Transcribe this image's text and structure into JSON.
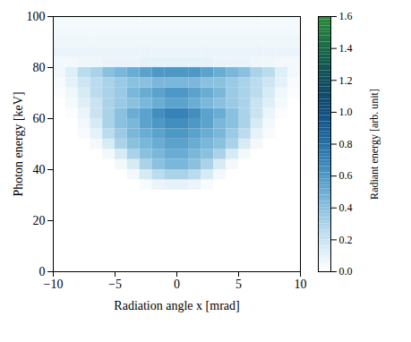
{
  "chart_data": {
    "type": "heatmap",
    "xlabel": "Radiation angle x [mrad]",
    "ylabel": "Photon energy [keV]",
    "xlim": [
      -10,
      10
    ],
    "xticks": [
      -10,
      -5,
      0,
      5,
      10
    ],
    "ylim": [
      0,
      100
    ],
    "yticks": [
      0,
      20,
      40,
      60,
      80,
      100
    ],
    "x_bins": [
      -10,
      -9,
      -8,
      -7,
      -6,
      -5,
      -4,
      -3,
      -2,
      -1,
      0,
      1,
      2,
      3,
      4,
      5,
      6,
      7,
      8,
      9,
      10
    ],
    "y_bins": [
      0,
      4,
      8,
      12,
      16,
      20,
      24,
      28,
      32,
      36,
      40,
      44,
      48,
      52,
      56,
      60,
      64,
      68,
      72,
      76,
      80,
      84,
      88,
      92,
      96,
      100
    ],
    "values": [
      [
        0,
        0,
        0,
        0,
        0,
        0,
        0,
        0,
        0,
        0,
        0,
        0,
        0,
        0,
        0,
        0,
        0,
        0,
        0,
        0
      ],
      [
        0,
        0,
        0,
        0,
        0,
        0,
        0,
        0,
        0,
        0,
        0,
        0,
        0,
        0,
        0,
        0,
        0,
        0,
        0,
        0
      ],
      [
        0,
        0,
        0,
        0,
        0,
        0,
        0,
        0,
        0,
        0,
        0,
        0,
        0,
        0,
        0,
        0,
        0,
        0,
        0,
        0
      ],
      [
        0,
        0,
        0,
        0,
        0,
        0,
        0,
        0,
        0,
        0,
        0,
        0,
        0,
        0,
        0,
        0,
        0,
        0,
        0,
        0
      ],
      [
        0,
        0,
        0,
        0,
        0,
        0,
        0,
        0,
        0,
        0,
        0,
        0,
        0,
        0,
        0,
        0,
        0,
        0,
        0,
        0
      ],
      [
        0,
        0,
        0,
        0,
        0,
        0,
        0,
        0,
        0,
        0,
        0,
        0,
        0,
        0,
        0,
        0,
        0,
        0,
        0,
        0
      ],
      [
        0,
        0,
        0,
        0,
        0,
        0,
        0,
        0,
        0,
        0,
        0,
        0,
        0,
        0,
        0,
        0,
        0,
        0,
        0,
        0
      ],
      [
        0,
        0,
        0,
        0,
        0,
        0,
        0,
        0,
        0,
        0,
        0,
        0,
        0,
        0,
        0,
        0,
        0,
        0,
        0,
        0
      ],
      [
        0,
        0,
        0,
        0,
        0,
        0,
        0,
        0.03,
        0.08,
        0.1,
        0.1,
        0.08,
        0.03,
        0,
        0,
        0,
        0,
        0,
        0,
        0
      ],
      [
        0,
        0,
        0,
        0,
        0,
        0,
        0.05,
        0.15,
        0.25,
        0.3,
        0.3,
        0.25,
        0.15,
        0.05,
        0,
        0,
        0,
        0,
        0,
        0
      ],
      [
        0,
        0,
        0,
        0,
        0,
        0.05,
        0.15,
        0.3,
        0.4,
        0.45,
        0.45,
        0.4,
        0.3,
        0.15,
        0.05,
        0,
        0,
        0,
        0,
        0
      ],
      [
        0,
        0,
        0,
        0,
        0.05,
        0.15,
        0.3,
        0.4,
        0.45,
        0.5,
        0.5,
        0.45,
        0.4,
        0.3,
        0.15,
        0.05,
        0,
        0,
        0,
        0
      ],
      [
        0,
        0,
        0,
        0.05,
        0.15,
        0.3,
        0.4,
        0.45,
        0.5,
        0.55,
        0.55,
        0.5,
        0.45,
        0.4,
        0.3,
        0.15,
        0.05,
        0,
        0,
        0
      ],
      [
        0,
        0,
        0.03,
        0.1,
        0.25,
        0.35,
        0.45,
        0.5,
        0.55,
        0.6,
        0.6,
        0.55,
        0.5,
        0.45,
        0.35,
        0.25,
        0.1,
        0.03,
        0,
        0
      ],
      [
        0,
        0,
        0.05,
        0.15,
        0.3,
        0.4,
        0.45,
        0.55,
        0.6,
        0.65,
        0.65,
        0.6,
        0.55,
        0.45,
        0.4,
        0.3,
        0.15,
        0.05,
        0,
        0
      ],
      [
        0,
        0.02,
        0.08,
        0.2,
        0.3,
        0.4,
        0.5,
        0.55,
        0.65,
        0.7,
        0.7,
        0.65,
        0.55,
        0.5,
        0.4,
        0.3,
        0.2,
        0.08,
        0.02,
        0
      ],
      [
        0,
        0.04,
        0.12,
        0.2,
        0.3,
        0.35,
        0.4,
        0.45,
        0.5,
        0.55,
        0.55,
        0.5,
        0.45,
        0.4,
        0.35,
        0.3,
        0.2,
        0.12,
        0.04,
        0
      ],
      [
        0.02,
        0.06,
        0.15,
        0.25,
        0.3,
        0.35,
        0.45,
        0.5,
        0.55,
        0.6,
        0.6,
        0.55,
        0.5,
        0.45,
        0.35,
        0.3,
        0.25,
        0.15,
        0.06,
        0.02
      ],
      [
        0.03,
        0.1,
        0.18,
        0.25,
        0.3,
        0.35,
        0.4,
        0.4,
        0.45,
        0.45,
        0.45,
        0.45,
        0.4,
        0.4,
        0.35,
        0.3,
        0.25,
        0.18,
        0.1,
        0.03
      ],
      [
        0.05,
        0.12,
        0.25,
        0.3,
        0.4,
        0.45,
        0.5,
        0.55,
        0.6,
        0.6,
        0.6,
        0.6,
        0.55,
        0.5,
        0.45,
        0.4,
        0.3,
        0.25,
        0.12,
        0.05
      ],
      [
        0.05,
        0.05,
        0.06,
        0.06,
        0.08,
        0.08,
        0.08,
        0.1,
        0.1,
        0.1,
        0.1,
        0.1,
        0.1,
        0.08,
        0.08,
        0.08,
        0.06,
        0.06,
        0.05,
        0.05
      ],
      [
        0.08,
        0.08,
        0.08,
        0.08,
        0.08,
        0.08,
        0.08,
        0.08,
        0.08,
        0.08,
        0.08,
        0.08,
        0.08,
        0.08,
        0.08,
        0.08,
        0.08,
        0.08,
        0.08,
        0.08
      ],
      [
        0.06,
        0.06,
        0.06,
        0.06,
        0.06,
        0.06,
        0.06,
        0.06,
        0.06,
        0.06,
        0.06,
        0.06,
        0.06,
        0.06,
        0.06,
        0.06,
        0.06,
        0.06,
        0.06,
        0.06
      ],
      [
        0.05,
        0.05,
        0.05,
        0.05,
        0.05,
        0.05,
        0.05,
        0.05,
        0.05,
        0.05,
        0.05,
        0.05,
        0.05,
        0.05,
        0.05,
        0.05,
        0.05,
        0.05,
        0.05,
        0.05
      ],
      [
        0.04,
        0.04,
        0.04,
        0.04,
        0.04,
        0.04,
        0.04,
        0.04,
        0.04,
        0.04,
        0.04,
        0.04,
        0.04,
        0.04,
        0.04,
        0.04,
        0.04,
        0.04,
        0.04,
        0.04
      ]
    ],
    "colorbar": {
      "label": "Radiant energy [arb. unit]",
      "lim": [
        0,
        1.6
      ],
      "ticks": [
        0,
        0.2,
        0.4,
        0.6,
        0.8,
        1,
        1.2,
        1.4,
        1.6
      ]
    }
  }
}
